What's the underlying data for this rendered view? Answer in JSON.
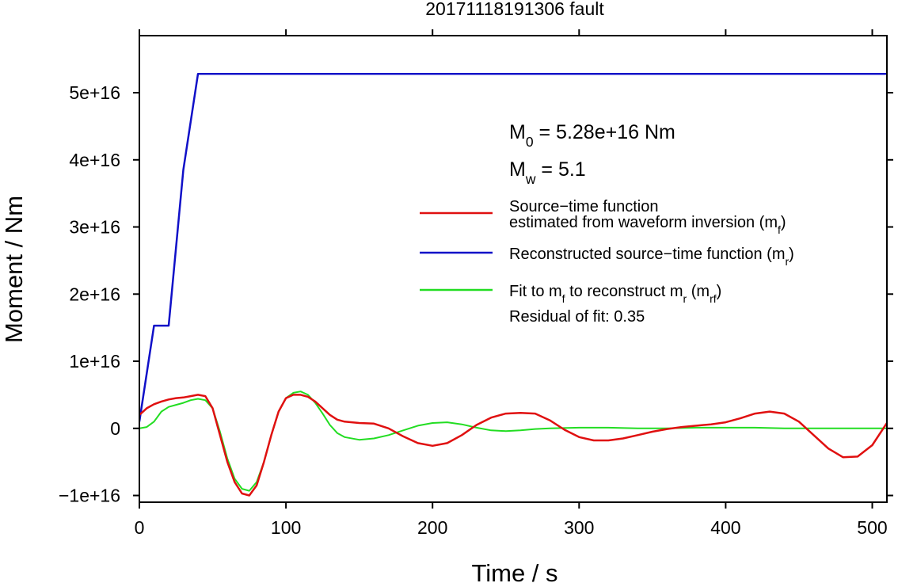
{
  "chart_data": {
    "type": "line",
    "title": "20171118191306 fault",
    "xlabel": "Time / s",
    "ylabel": "Moment / Nm",
    "xlim": [
      0,
      510
    ],
    "ylim": [
      -1.1e+16,
      5.85e+16
    ],
    "x_ticks": [
      0,
      100,
      200,
      300,
      400,
      500
    ],
    "x_tick_labels": [
      "0",
      "100",
      "200",
      "300",
      "400",
      "500"
    ],
    "y_ticks": [
      -1e+16,
      0,
      1e+16,
      2e+16,
      3e+16,
      4e+16,
      5e+16
    ],
    "y_tick_labels": [
      "−1e+16",
      "0",
      "1e+16",
      "2e+16",
      "3e+16",
      "4e+16",
      "5e+16"
    ],
    "grid": false,
    "legend_position": "right",
    "annotations": {
      "m0": {
        "main": "M",
        "sub": "0",
        "rest": " = 5.28e+16 Nm"
      },
      "mw": {
        "main": "M",
        "sub": "w",
        "rest": " = 5.1"
      },
      "residual": "Residual of fit: 0.35"
    },
    "series": [
      {
        "key": "mf",
        "color": "#e01010",
        "legend": [
          {
            "text": "Source−time function"
          },
          {
            "text": "estimated from waveform inversion (m",
            "sub": "f",
            "tail": ")"
          }
        ],
        "x": [
          0,
          5,
          10,
          15,
          20,
          25,
          30,
          35,
          40,
          45,
          50,
          55,
          60,
          65,
          70,
          75,
          80,
          85,
          90,
          95,
          100,
          105,
          110,
          115,
          120,
          125,
          130,
          135,
          140,
          150,
          160,
          170,
          180,
          190,
          200,
          210,
          220,
          230,
          240,
          250,
          260,
          270,
          280,
          290,
          300,
          310,
          320,
          330,
          340,
          350,
          360,
          370,
          380,
          390,
          400,
          410,
          420,
          430,
          440,
          450,
          460,
          470,
          480,
          490,
          500,
          510
        ],
        "y": [
          2000000000000000.0,
          3000000000000000.0,
          3600000000000000.0,
          4000000000000000.0,
          4300000000000000.0,
          4500000000000000.0,
          4600000000000000.0,
          4800000000000000.0,
          5000000000000000.0,
          4800000000000000.0,
          3000000000000000.0,
          -1000000000000000.0,
          -5000000000000000.0,
          -8000000000000000.0,
          -9700000000000000.0,
          -1e+16,
          -8500000000000000.0,
          -5000000000000000.0,
          -1000000000000000.0,
          2500000000000000.0,
          4500000000000000.0,
          5000000000000000.0,
          5000000000000000.0,
          4700000000000000.0,
          4000000000000000.0,
          3000000000000000.0,
          2000000000000000.0,
          1300000000000000.0,
          1000000000000000.0,
          800000000000000.0,
          700000000000000.0,
          0.0,
          -1200000000000000.0,
          -2200000000000000.0,
          -2600000000000000.0,
          -2200000000000000.0,
          -1000000000000000.0,
          500000000000000.0,
          1600000000000000.0,
          2200000000000000.0,
          2300000000000000.0,
          2200000000000000.0,
          1200000000000000.0,
          -200000000000000.0,
          -1300000000000000.0,
          -1800000000000000.0,
          -1800000000000000.0,
          -1500000000000000.0,
          -1000000000000000.0,
          -500000000000000.0,
          -100000000000000.0,
          200000000000000.0,
          400000000000000.0,
          600000000000000.0,
          900000000000000.0,
          1500000000000000.0,
          2200000000000000.0,
          2500000000000000.0,
          2200000000000000.0,
          1000000000000000.0,
          -1000000000000000.0,
          -3000000000000000.0,
          -4300000000000000.0,
          -4200000000000000.0,
          -2500000000000000.0,
          800000000000000.0
        ]
      },
      {
        "key": "mr",
        "color": "#1010c8",
        "legend": [
          {
            "text": "Reconstructed source−time function (m",
            "sub": "r",
            "tail": ")"
          }
        ],
        "x": [
          0,
          10,
          20,
          30,
          40,
          510
        ],
        "y": [
          1000000000000000.0,
          1.53e+16,
          1.53e+16,
          3.85e+16,
          5.28e+16,
          5.28e+16
        ]
      },
      {
        "key": "mrf",
        "color": "#22dd22",
        "legend": [
          {
            "text": "Fit to m",
            "sub": "f",
            "tail": " to reconstruct m",
            "sub2": "r",
            "tail2": " (m",
            "sub3": "rf",
            "tail3": ")"
          }
        ],
        "x": [
          0,
          5,
          10,
          15,
          20,
          25,
          30,
          35,
          40,
          45,
          50,
          55,
          60,
          65,
          70,
          75,
          80,
          85,
          90,
          95,
          100,
          105,
          110,
          115,
          120,
          125,
          130,
          135,
          140,
          150,
          160,
          170,
          180,
          190,
          200,
          210,
          220,
          230,
          240,
          250,
          260,
          270,
          280,
          300,
          320,
          340,
          360,
          380,
          400,
          420,
          440,
          460,
          480,
          500,
          510
        ],
        "y": [
          0.0,
          200000000000000.0,
          1000000000000000.0,
          2500000000000000.0,
          3200000000000000.0,
          3500000000000000.0,
          3800000000000000.0,
          4200000000000000.0,
          4400000000000000.0,
          4200000000000000.0,
          3000000000000000.0,
          -500000000000000.0,
          -4500000000000000.0,
          -7500000000000000.0,
          -9000000000000000.0,
          -9300000000000000.0,
          -8000000000000000.0,
          -5000000000000000.0,
          -1000000000000000.0,
          2500000000000000.0,
          4500000000000000.0,
          5300000000000000.0,
          5500000000000000.0,
          5000000000000000.0,
          3800000000000000.0,
          2200000000000000.0,
          500000000000000.0,
          -700000000000000.0,
          -1300000000000000.0,
          -1700000000000000.0,
          -1500000000000000.0,
          -1000000000000000.0,
          -300000000000000.0,
          400000000000000.0,
          800000000000000.0,
          900000000000000.0,
          600000000000000.0,
          100000000000000.0,
          -300000000000000.0,
          -400000000000000.0,
          -300000000000000.0,
          -100000000000000.0,
          0.0,
          100000000000000.0,
          100000000000000.0,
          0.0,
          0.0,
          100000000000000.0,
          100000000000000.0,
          100000000000000.0,
          0.0,
          0.0,
          0.0,
          0.0,
          0.0
        ]
      }
    ]
  }
}
